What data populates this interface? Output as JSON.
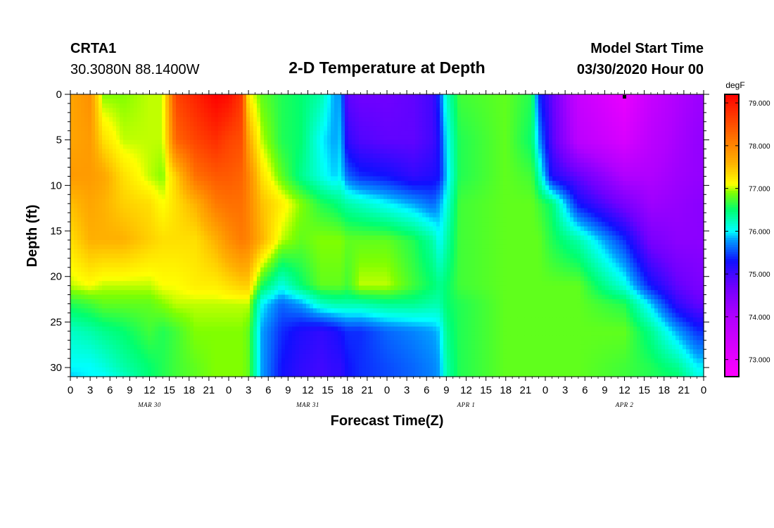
{
  "header": {
    "station": "CRTA1",
    "coords": "30.3080N 88.1400W",
    "title": "2-D Temperature at Depth",
    "model_label": "Model Start Time",
    "model_time": "03/30/2020 Hour 00"
  },
  "chart_data": {
    "type": "heatmap",
    "title": "2-D Temperature at Depth",
    "xlabel": "Forecast Time(Z)",
    "ylabel": "Depth (ft)",
    "x_range_hours": [
      0,
      96
    ],
    "x_tick_labels": [
      "0",
      "3",
      "6",
      "9",
      "12",
      "15",
      "18",
      "21",
      "0",
      "3",
      "6",
      "9",
      "12",
      "15",
      "18",
      "21",
      "0",
      "3",
      "6",
      "9",
      "12",
      "15",
      "18",
      "21",
      "0",
      "3",
      "6",
      "9",
      "12",
      "15",
      "18",
      "21",
      "0"
    ],
    "date_labels": [
      {
        "text": "MAR 30",
        "hour": 12
      },
      {
        "text": "MAR 31",
        "hour": 36
      },
      {
        "text": "APR 1",
        "hour": 60
      },
      {
        "text": "APR 2",
        "hour": 84
      }
    ],
    "y_range_ft": [
      0,
      31
    ],
    "y_reversed": true,
    "y_tick_labels": [
      "0",
      "5",
      "10",
      "15",
      "20",
      "25",
      "30"
    ],
    "colorbar": {
      "unit": "degF",
      "min": 72.6,
      "max": 79.2,
      "tick_labels": [
        "79.000",
        "78.000",
        "77.000",
        "76.000",
        "75.000",
        "74.000",
        "73.000"
      ],
      "colors": [
        {
          "t": 72.6,
          "c": "#ff00ff"
        },
        {
          "t": 74.0,
          "c": "#b000ff"
        },
        {
          "t": 74.7,
          "c": "#7000ff"
        },
        {
          "t": 75.3,
          "c": "#1010ff"
        },
        {
          "t": 75.8,
          "c": "#00a0ff"
        },
        {
          "t": 76.0,
          "c": "#00ffff"
        },
        {
          "t": 76.5,
          "c": "#00ff70"
        },
        {
          "t": 76.9,
          "c": "#80ff00"
        },
        {
          "t": 77.1,
          "c": "#ffff00"
        },
        {
          "t": 77.6,
          "c": "#ffb000"
        },
        {
          "t": 78.2,
          "c": "#ff7000"
        },
        {
          "t": 79.2,
          "c": "#ff0000"
        }
      ]
    },
    "temperature_profiles_degF": {
      "depths_ft": [
        0,
        5,
        9,
        12,
        16,
        21,
        23,
        26,
        30,
        31
      ],
      "profiles": [
        {
          "hour": 0,
          "t": [
            77.7,
            77.7,
            77.8,
            77.5,
            77.3,
            77.0,
            76.6,
            76.2,
            76.0,
            75.9
          ]
        },
        {
          "hour": 3,
          "t": [
            77.9,
            77.8,
            77.8,
            77.7,
            77.6,
            77.1,
            76.7,
            76.3,
            76.0,
            76.0
          ]
        },
        {
          "hour": 5,
          "t": [
            76.9,
            77.3,
            77.7,
            77.6,
            77.6,
            77.0,
            76.8,
            76.4,
            76.1,
            76.0
          ]
        },
        {
          "hour": 8,
          "t": [
            76.9,
            77.0,
            77.3,
            77.4,
            77.6,
            77.0,
            76.8,
            76.5,
            76.3,
            76.2
          ]
        },
        {
          "hour": 12,
          "t": [
            77.0,
            77.0,
            77.0,
            77.3,
            77.4,
            77.0,
            76.8,
            76.7,
            76.5,
            76.5
          ]
        },
        {
          "hour": 14,
          "t": [
            77.0,
            77.0,
            76.9,
            77.1,
            77.3,
            77.1,
            76.9,
            76.6,
            76.6,
            76.6
          ]
        },
        {
          "hour": 16,
          "t": [
            78.6,
            78.3,
            77.4,
            77.3,
            77.3,
            77.1,
            77.0,
            76.7,
            76.7,
            76.7
          ]
        },
        {
          "hour": 19,
          "t": [
            78.9,
            78.6,
            78.2,
            77.6,
            77.3,
            77.2,
            77.0,
            76.9,
            76.8,
            76.8
          ]
        },
        {
          "hour": 22,
          "t": [
            79.2,
            78.8,
            78.4,
            78.1,
            77.6,
            77.2,
            77.0,
            76.9,
            76.9,
            76.9
          ]
        },
        {
          "hour": 24,
          "t": [
            79.1,
            78.6,
            78.4,
            78.2,
            77.9,
            77.3,
            77.0,
            76.9,
            76.9,
            76.9
          ]
        },
        {
          "hour": 26,
          "t": [
            78.7,
            78.5,
            78.3,
            78.2,
            78.1,
            77.4,
            77.0,
            76.9,
            76.9,
            76.9
          ]
        },
        {
          "hour": 27,
          "t": [
            77.2,
            77.7,
            78.0,
            78.0,
            78.0,
            77.4,
            77.0,
            76.8,
            76.8,
            76.8
          ]
        },
        {
          "hour": 29,
          "t": [
            76.8,
            77.0,
            77.3,
            77.5,
            77.6,
            76.6,
            76.0,
            75.8,
            75.8,
            75.8
          ]
        },
        {
          "hour": 32,
          "t": [
            76.6,
            76.6,
            76.8,
            77.2,
            77.0,
            76.1,
            75.6,
            75.4,
            75.3,
            75.3
          ]
        },
        {
          "hour": 35,
          "t": [
            76.5,
            76.5,
            76.4,
            76.9,
            76.8,
            76.5,
            75.8,
            75.2,
            75.1,
            75.1
          ]
        },
        {
          "hour": 38,
          "t": [
            76.3,
            76.0,
            76.1,
            76.6,
            76.9,
            76.8,
            76.2,
            75.1,
            75.0,
            75.0
          ]
        },
        {
          "hour": 40,
          "t": [
            75.8,
            75.8,
            75.9,
            76.5,
            76.9,
            76.8,
            76.3,
            75.2,
            75.1,
            75.1
          ]
        },
        {
          "hour": 41,
          "t": [
            75.8,
            75.9,
            76.0,
            76.4,
            76.9,
            76.8,
            76.3,
            75.3,
            75.1,
            75.1
          ]
        },
        {
          "hour": 42,
          "t": [
            74.8,
            75.1,
            75.6,
            76.3,
            76.8,
            76.7,
            76.3,
            75.4,
            75.3,
            75.3
          ]
        },
        {
          "hour": 44,
          "t": [
            74.7,
            74.9,
            75.4,
            76.2,
            76.8,
            77.0,
            76.3,
            75.4,
            75.4,
            75.4
          ]
        },
        {
          "hour": 48,
          "t": [
            74.7,
            74.8,
            75.3,
            76.0,
            76.8,
            77.0,
            76.4,
            75.6,
            75.5,
            75.5
          ]
        },
        {
          "hour": 52,
          "t": [
            74.8,
            74.8,
            75.1,
            75.8,
            76.6,
            76.7,
            76.4,
            75.7,
            75.6,
            75.6
          ]
        },
        {
          "hour": 55,
          "t": [
            75.0,
            75.0,
            75.2,
            75.6,
            76.3,
            76.5,
            76.3,
            75.8,
            75.7,
            75.7
          ]
        },
        {
          "hour": 56,
          "t": [
            75.5,
            75.3,
            75.3,
            75.8,
            76.0,
            76.4,
            76.3,
            75.9,
            75.8,
            75.8
          ]
        },
        {
          "hour": 57,
          "t": [
            76.2,
            76.0,
            75.9,
            76.1,
            76.3,
            76.5,
            76.5,
            76.4,
            76.3,
            76.3
          ]
        },
        {
          "hour": 59,
          "t": [
            76.7,
            76.6,
            76.6,
            76.7,
            76.7,
            76.7,
            76.6,
            76.6,
            76.6,
            76.6
          ]
        },
        {
          "hour": 66,
          "t": [
            76.8,
            76.8,
            76.8,
            76.8,
            76.8,
            76.8,
            76.8,
            76.8,
            76.8,
            76.8
          ]
        },
        {
          "hour": 70,
          "t": [
            76.6,
            76.5,
            76.7,
            76.8,
            76.8,
            76.8,
            76.8,
            76.8,
            76.8,
            76.8
          ]
        },
        {
          "hour": 71,
          "t": [
            75.4,
            75.8,
            76.3,
            76.7,
            76.8,
            76.8,
            76.8,
            76.8,
            76.8,
            76.8
          ]
        },
        {
          "hour": 73,
          "t": [
            74.8,
            74.9,
            75.2,
            76.5,
            76.6,
            76.8,
            76.8,
            76.8,
            76.8,
            76.8
          ]
        },
        {
          "hour": 77,
          "t": [
            73.6,
            73.8,
            74.8,
            75.3,
            76.3,
            76.8,
            76.8,
            76.8,
            76.8,
            76.8
          ]
        },
        {
          "hour": 84,
          "t": [
            73.0,
            73.3,
            74.0,
            74.6,
            75.4,
            76.1,
            76.6,
            76.8,
            76.7,
            76.7
          ]
        },
        {
          "hour": 88,
          "t": [
            73.6,
            73.8,
            74.0,
            74.2,
            74.6,
            75.3,
            75.9,
            76.4,
            76.6,
            76.6
          ]
        },
        {
          "hour": 92,
          "t": [
            74.0,
            74.1,
            74.2,
            74.3,
            74.4,
            74.8,
            75.1,
            75.8,
            76.4,
            76.5
          ]
        },
        {
          "hour": 95,
          "t": [
            74.2,
            74.3,
            74.3,
            74.4,
            74.4,
            74.6,
            74.8,
            75.4,
            76.0,
            76.1
          ]
        },
        {
          "hour": 96,
          "t": [
            74.2,
            74.3,
            74.3,
            74.4,
            74.4,
            74.6,
            74.8,
            75.4,
            76.0,
            76.1
          ]
        }
      ]
    },
    "marker": {
      "hour": 84,
      "depth_ft": 0
    }
  }
}
